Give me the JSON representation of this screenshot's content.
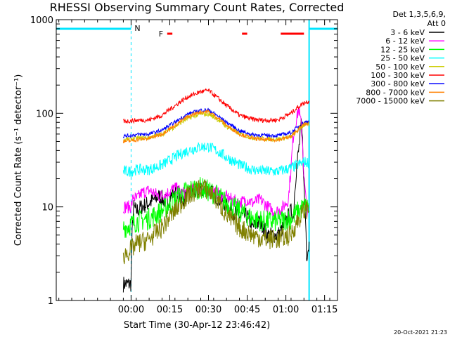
{
  "chart_data": {
    "type": "line",
    "title": "RHESSI Observing Summary Count Rates, Corrected",
    "xlabel": "Start Time (30-Apr-12 23:46:42)",
    "ylabel": "Corrected Count Rate (s⁻¹ detector⁻¹)",
    "yscale": "log",
    "ylim": [
      1,
      1000
    ],
    "xlim_minutes": [
      -16,
      93
    ],
    "x_ticks": [
      {
        "label": "00:00",
        "value": 13
      },
      {
        "label": "00:15",
        "value": 28
      },
      {
        "label": "00:30",
        "value": 43
      },
      {
        "label": "00:45",
        "value": 58
      },
      {
        "label": "01:00",
        "value": 73
      },
      {
        "label": "01:15",
        "value": 88
      }
    ],
    "y_ticks": [
      {
        "label": "1",
        "value": 1
      },
      {
        "label": "10",
        "value": 10
      },
      {
        "label": "100",
        "value": 100
      },
      {
        "label": "1000",
        "value": 1000
      }
    ],
    "legend_header": [
      "Det 1,3,5,6,9,",
      "Att 0"
    ],
    "timestamp": "20-Oct-2021 21:23",
    "flags": {
      "night_label": "N",
      "flare_label": "F",
      "night_intervals": [
        [
          -16,
          13
        ],
        [
          82,
          93
        ]
      ],
      "flare_intervals": [
        [
          27,
          29
        ],
        [
          56,
          58
        ],
        [
          71,
          80
        ]
      ]
    },
    "series": [
      {
        "name": "3 - 6 keV",
        "color": "#000000",
        "x": [
          10,
          13,
          14,
          15,
          17,
          20,
          24,
          27,
          30,
          33,
          36,
          40,
          43,
          46,
          49,
          52,
          55,
          58,
          60,
          63,
          66,
          68,
          70,
          72,
          74,
          75,
          76,
          78,
          79,
          80,
          81,
          82
        ],
        "values": [
          1.5,
          1.5,
          10,
          9,
          10,
          11,
          13,
          11,
          15,
          12,
          14,
          15,
          15,
          13,
          11,
          9,
          8,
          8,
          6,
          7,
          5,
          5,
          5,
          6,
          8,
          9,
          8,
          40,
          75,
          15,
          3,
          4
        ]
      },
      {
        "name": "6 - 12 keV",
        "color": "#ff00ff",
        "x": [
          10,
          13,
          14,
          15,
          17,
          20,
          24,
          27,
          30,
          33,
          36,
          40,
          43,
          46,
          49,
          52,
          55,
          58,
          60,
          63,
          66,
          68,
          70,
          72,
          74,
          75,
          76,
          78,
          79,
          80,
          81,
          82
        ],
        "values": [
          10,
          10,
          13,
          12,
          14,
          15,
          13,
          14,
          16,
          14,
          15,
          16,
          16,
          14,
          13,
          12,
          11,
          12,
          11,
          12,
          10,
          9,
          9,
          10,
          12,
          25,
          60,
          110,
          70,
          20,
          9,
          9
        ]
      },
      {
        "name": "12 - 25 keV",
        "color": "#00ff00",
        "x": [
          10,
          13,
          15,
          20,
          25,
          30,
          35,
          40,
          45,
          50,
          55,
          60,
          65,
          70,
          75,
          80,
          82
        ],
        "values": [
          6,
          6.5,
          7,
          7.5,
          9,
          12,
          15,
          16,
          14,
          11,
          9,
          7.5,
          7,
          7,
          7.5,
          10,
          10
        ]
      },
      {
        "name": "25 - 50 keV",
        "color": "#00ffff",
        "x": [
          10,
          13,
          15,
          20,
          25,
          30,
          35,
          40,
          43,
          46,
          50,
          55,
          60,
          65,
          70,
          75,
          80,
          82
        ],
        "values": [
          24,
          24,
          25,
          25,
          28,
          34,
          40,
          44,
          44,
          40,
          34,
          28,
          25,
          24,
          24,
          26,
          30,
          30
        ]
      },
      {
        "name": "50 - 100 keV",
        "color": "#cccc00",
        "x": [
          10,
          13,
          15,
          20,
          25,
          30,
          35,
          40,
          43,
          46,
          50,
          55,
          60,
          65,
          70,
          75,
          80,
          82
        ],
        "values": [
          52,
          53,
          54,
          55,
          60,
          72,
          88,
          98,
          98,
          88,
          72,
          60,
          55,
          53,
          53,
          56,
          75,
          76
        ]
      },
      {
        "name": "100 - 300 keV",
        "color": "#ff0000",
        "x": [
          10,
          13,
          15,
          20,
          25,
          30,
          35,
          40,
          43,
          46,
          50,
          55,
          60,
          65,
          70,
          75,
          80,
          82
        ],
        "values": [
          82,
          83,
          84,
          85,
          95,
          120,
          150,
          170,
          175,
          150,
          120,
          95,
          86,
          84,
          85,
          100,
          130,
          135
        ]
      },
      {
        "name": "300 - 800 keV",
        "color": "#0000ff",
        "x": [
          10,
          13,
          15,
          20,
          25,
          30,
          35,
          40,
          43,
          46,
          50,
          55,
          60,
          65,
          70,
          75,
          80,
          82
        ],
        "values": [
          57,
          58,
          59,
          60,
          66,
          80,
          98,
          108,
          108,
          96,
          80,
          65,
          59,
          58,
          58,
          62,
          80,
          82
        ]
      },
      {
        "name": "800 - 7000 keV",
        "color": "#ff8000",
        "x": [
          10,
          13,
          15,
          20,
          25,
          30,
          35,
          40,
          43,
          46,
          50,
          55,
          60,
          65,
          70,
          75,
          80,
          82
        ],
        "values": [
          50,
          51,
          52,
          54,
          60,
          74,
          92,
          104,
          104,
          92,
          74,
          60,
          54,
          52,
          52,
          56,
          76,
          78
        ]
      },
      {
        "name": "7000 - 15000 keV",
        "color": "#808000",
        "x": [
          10,
          13,
          15,
          20,
          25,
          30,
          35,
          40,
          43,
          46,
          50,
          55,
          60,
          65,
          70,
          75,
          80,
          82
        ],
        "values": [
          3,
          3.5,
          4,
          4.5,
          6,
          9,
          13,
          16,
          15,
          12,
          8,
          6,
          5,
          4.5,
          4.5,
          5,
          9,
          10
        ]
      }
    ]
  }
}
